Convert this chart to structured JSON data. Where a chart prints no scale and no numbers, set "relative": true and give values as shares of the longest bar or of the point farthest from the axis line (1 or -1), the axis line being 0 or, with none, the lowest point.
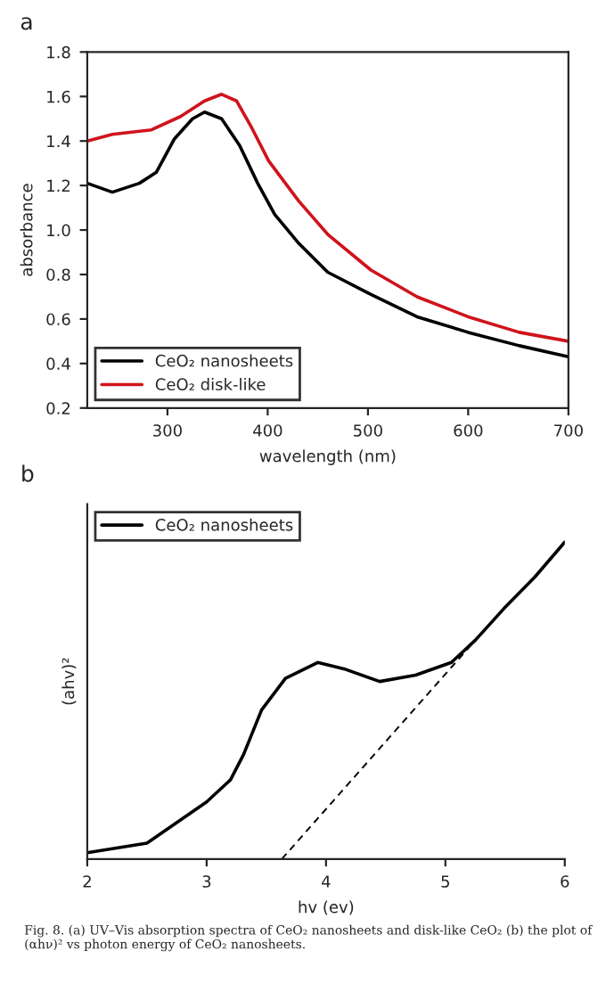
{
  "chart_data": [
    {
      "type": "line",
      "xlabel": "wavelength (nm)",
      "ylabel": "absorbance",
      "annotations": [
        "a"
      ],
      "xlim": [
        220,
        700
      ],
      "xticks": [
        300,
        400,
        500,
        600,
        700
      ],
      "ylim": [
        0.2,
        1.8
      ],
      "yticks": [
        0.2,
        0.4,
        0.6,
        0.8,
        {
          "value": 1.0,
          "label": "1.0"
        },
        1.2,
        1.4,
        1.6,
        1.8
      ],
      "grid": false,
      "legend": "bottom left",
      "series": [
        {
          "name": "CeO₂ nanosheets",
          "color": "#000000",
          "x": [
            220,
            245,
            272,
            289,
            307,
            325,
            337,
            354,
            372,
            390,
            407,
            431,
            460,
            503,
            549,
            600,
            651,
            700
          ],
          "values": [
            1.21,
            1.17,
            1.21,
            1.26,
            1.41,
            1.5,
            1.53,
            1.5,
            1.38,
            1.21,
            1.07,
            0.94,
            0.81,
            0.71,
            0.61,
            0.54,
            0.48,
            0.43
          ]
        },
        {
          "name": "CeO₂ disk-like",
          "color": "#d0131b",
          "x": [
            220,
            245,
            284,
            313,
            337,
            354,
            369,
            384,
            401,
            431,
            460,
            503,
            549,
            600,
            651,
            700
          ],
          "values": [
            1.4,
            1.43,
            1.45,
            1.51,
            1.58,
            1.61,
            1.58,
            1.46,
            1.31,
            1.13,
            0.98,
            0.82,
            0.7,
            0.61,
            0.54,
            0.5
          ]
        }
      ]
    },
    {
      "type": "line",
      "xlabel": "hv (ev)",
      "ylabel": "(ahv)²",
      "relative": true,
      "tick_labels": "x",
      "annotations": [
        "b",
        "Fig. 8. (a) UV–Vis absorption spectra of CeO₂ nanosheets and disk-like CeO₂ (b) the plot of (αhν)² vs photon energy of CeO₂ nanosheets."
      ],
      "xlim": [
        2,
        6
      ],
      "xticks": [
        2,
        3,
        4,
        5,
        6
      ],
      "grid": false,
      "legend": "top left",
      "series": [
        {
          "name": "CeO₂ nanosheets",
          "color": "#000000",
          "line_style": "solid",
          "x": [
            2.0,
            2.5,
            3.0,
            3.2,
            3.31,
            3.46,
            3.66,
            3.93,
            4.15,
            4.45,
            4.75,
            5.05,
            5.25,
            5.49,
            5.75,
            6.0
          ],
          "values": [
            0.02,
            0.05,
            0.18,
            0.25,
            0.33,
            0.47,
            0.57,
            0.62,
            0.6,
            0.56,
            0.58,
            0.62,
            0.69,
            0.79,
            0.89,
            1.0
          ]
        },
        {
          "color": "#000000",
          "line_style": "dashed",
          "x": [
            3.63,
            5.25
          ],
          "values": [
            0.0,
            0.69
          ]
        }
      ]
    }
  ]
}
